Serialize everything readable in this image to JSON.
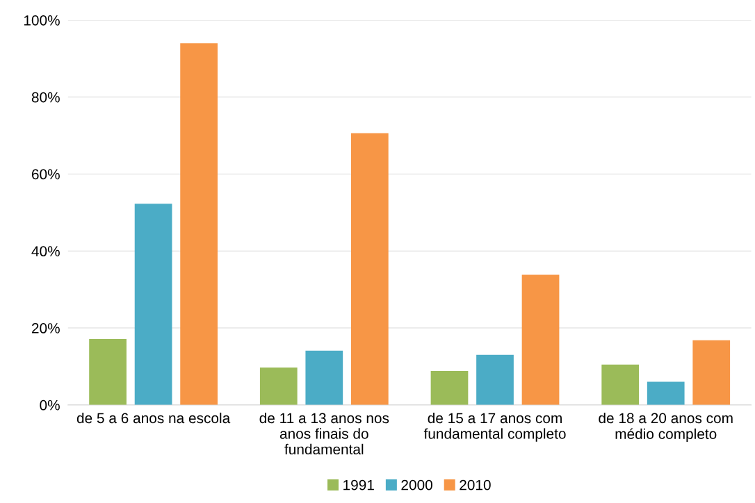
{
  "chart_data": {
    "type": "bar",
    "categories": [
      "de 5 a 6 anos na escola",
      "de 11 a 13 anos nos anos finais do fundamental",
      "de 15 a 17 anos com fundamental completo",
      "de 18 a 20 anos com médio completo"
    ],
    "series": [
      {
        "name": "1991",
        "color": "#9bbb59",
        "values": [
          17.1,
          9.7,
          8.8,
          10.5
        ]
      },
      {
        "name": "2000",
        "color": "#4bacc6",
        "values": [
          52.3,
          14.1,
          13.0,
          6.0
        ]
      },
      {
        "name": "2010",
        "color": "#f79646",
        "values": [
          94.0,
          70.6,
          33.8,
          16.8
        ]
      }
    ],
    "ylim": [
      0,
      100
    ],
    "yticks": [
      {
        "value": 0,
        "label": "0%"
      },
      {
        "value": 20,
        "label": "20%"
      },
      {
        "value": 40,
        "label": "40%"
      },
      {
        "value": 60,
        "label": "60%"
      },
      {
        "value": 80,
        "label": "80%"
      },
      {
        "value": 100,
        "label": "100%"
      }
    ],
    "grid": "y",
    "legend": "bottom"
  }
}
